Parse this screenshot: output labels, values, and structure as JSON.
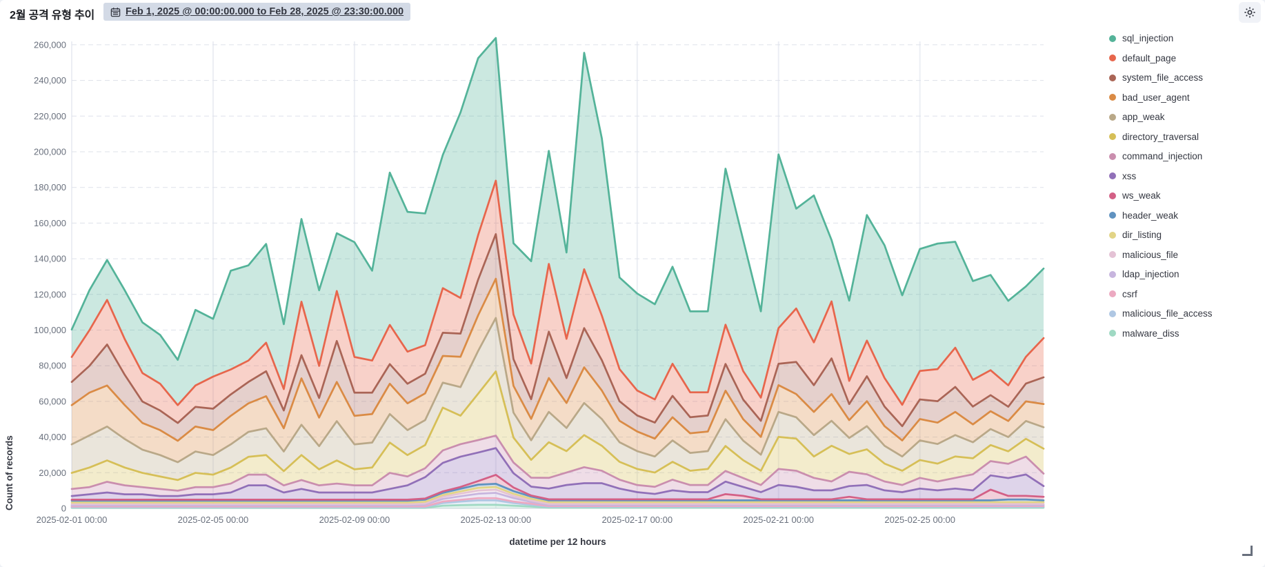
{
  "header": {
    "title": "2월 공격 유형 추이",
    "time_range_label": "Feb 1, 2025 @ 00:00:00.000 to Feb 28, 2025 @ 23:30:00.000",
    "calendar_icon": "calendar-icon",
    "gear_icon": "gear-icon"
  },
  "chart_data": {
    "type": "area",
    "stacked": true,
    "xlabel": "datetime per 12 hours",
    "ylabel": "Count of records",
    "ylim": [
      0,
      270000
    ],
    "grid": true,
    "legend_position": "right",
    "n_points": 56,
    "x_interval": "12h",
    "x_tick_indices": [
      0,
      8,
      16,
      24,
      32,
      40,
      48
    ],
    "x_tick_labels": [
      "2025-02-01 00:00",
      "2025-02-05 00:00",
      "2025-02-09 00:00",
      "2025-02-13 00:00",
      "2025-02-17 00:00",
      "2025-02-21 00:00",
      "2025-02-25 00:00"
    ],
    "y_tick_values": [
      0,
      20000,
      40000,
      60000,
      80000,
      100000,
      120000,
      140000,
      160000,
      180000,
      200000,
      220000,
      240000,
      260000
    ],
    "y_tick_labels": [
      "0",
      "20,000",
      "40,000",
      "60,000",
      "80,000",
      "100,000",
      "120,000",
      "140,000",
      "160,000",
      "180,000",
      "200,000",
      "220,000",
      "240,000",
      "260,000"
    ],
    "series": [
      {
        "name": "sql_injection",
        "color": "#54B399",
        "values": [
          15400,
          22400,
          22400,
          27400,
          28400,
          27400,
          25400,
          42400,
          32400,
          55400,
          53400,
          55400,
          36400,
          46400,
          42400,
          32400,
          64400,
          50400,
          85400,
          78400,
          73900,
          74700,
          104000,
          99200,
          80000,
          40000,
          57400,
          63400,
          48400,
          121400,
          99400,
          51400,
          54400,
          53400,
          54400,
          45400,
          45400,
          87500,
          73500,
          48400,
          97400,
          56000,
          82400,
          34400,
          45000,
          70400,
          74400,
          61400,
          68400,
          70400,
          59400,
          55400,
          53400,
          47400,
          39500,
          39000
        ]
      },
      {
        "name": "default_page",
        "color": "#E7664C",
        "values": [
          14000,
          20000,
          25000,
          20000,
          16000,
          15000,
          10000,
          12000,
          18000,
          14000,
          12000,
          16000,
          12000,
          30000,
          18000,
          28000,
          20000,
          18000,
          22000,
          18000,
          16000,
          25000,
          20000,
          25000,
          30000,
          25000,
          20000,
          38000,
          22000,
          33000,
          25000,
          18000,
          14000,
          13000,
          18000,
          14000,
          13000,
          22000,
          16000,
          13000,
          20000,
          30000,
          24000,
          32000,
          13000,
          20000,
          16000,
          12000,
          16000,
          18000,
          22000,
          15000,
          14000,
          12000,
          15000,
          22000
        ]
      },
      {
        "name": "system_file_access",
        "color": "#AA6556",
        "values": [
          13000,
          15000,
          23000,
          17000,
          12000,
          11000,
          10000,
          11000,
          12000,
          12000,
          12000,
          14000,
          10000,
          13000,
          11000,
          23000,
          13000,
          12000,
          11000,
          11000,
          11000,
          13000,
          13000,
          20000,
          25000,
          15000,
          11000,
          26000,
          14000,
          22000,
          17000,
          11000,
          9000,
          9000,
          12000,
          9000,
          9000,
          15000,
          11000,
          9000,
          12000,
          18000,
          15000,
          20000,
          9000,
          14000,
          11000,
          8000,
          11000,
          12000,
          14000,
          10000,
          9000,
          8000,
          10000,
          15000
        ]
      },
      {
        "name": "bad_user_agent",
        "color": "#DA8B45",
        "values": [
          22000,
          24000,
          23000,
          19000,
          15000,
          14000,
          12000,
          14000,
          14000,
          16000,
          16000,
          18000,
          13000,
          26000,
          16000,
          22000,
          16000,
          16000,
          17000,
          15000,
          15000,
          15000,
          17000,
          20000,
          22000,
          15000,
          12000,
          19000,
          14000,
          20000,
          16000,
          12000,
          11000,
          10000,
          13000,
          11000,
          11000,
          16000,
          12000,
          10000,
          15000,
          13000,
          13000,
          15000,
          10000,
          14000,
          11000,
          9000,
          12000,
          12000,
          13000,
          10000,
          10000,
          9000,
          11000,
          13000
        ]
      },
      {
        "name": "app_weak",
        "color": "#B9A888",
        "values": [
          16000,
          18000,
          19000,
          16000,
          13000,
          12000,
          10000,
          12000,
          11000,
          13000,
          14000,
          15000,
          11000,
          17000,
          13000,
          22000,
          14000,
          14000,
          16000,
          14000,
          14000,
          14000,
          16000,
          24000,
          30000,
          14000,
          11000,
          17000,
          13000,
          18000,
          15000,
          11000,
          10000,
          9000,
          12000,
          10000,
          10000,
          15000,
          11000,
          9000,
          14000,
          12000,
          12000,
          14000,
          9000,
          13000,
          10000,
          8000,
          11000,
          11000,
          12000,
          9000,
          9000,
          8000,
          10000,
          12000
        ]
      },
      {
        "name": "directory_traversal",
        "color": "#D6BF57",
        "values": [
          9000,
          11000,
          12000,
          10000,
          8000,
          7000,
          6000,
          8000,
          7000,
          9000,
          10000,
          11000,
          8000,
          14000,
          9000,
          13000,
          9000,
          10000,
          17000,
          12000,
          13000,
          24000,
          16000,
          26000,
          36000,
          14000,
          10000,
          20000,
          12000,
          18000,
          14000,
          10000,
          9000,
          8000,
          10000,
          8000,
          9000,
          14000,
          10000,
          8000,
          18000,
          18000,
          12000,
          20000,
          10000,
          14000,
          10000,
          8000,
          10000,
          10000,
          12000,
          9000,
          9000,
          7000,
          10000,
          14000
        ]
      },
      {
        "name": "command_injection",
        "color": "#CA8EAE",
        "values": [
          4000,
          4000,
          6000,
          5000,
          4000,
          4000,
          3000,
          4000,
          4000,
          5000,
          6000,
          6000,
          4000,
          5000,
          4000,
          5000,
          4000,
          4000,
          9000,
          5000,
          5000,
          7000,
          7000,
          7000,
          7000,
          6000,
          5000,
          6000,
          7000,
          9000,
          7000,
          5000,
          4000,
          4000,
          6000,
          4000,
          4000,
          6000,
          5000,
          4000,
          9000,
          9000,
          7000,
          5000,
          8000,
          6000,
          5000,
          4000,
          6000,
          5000,
          6000,
          9000,
          8000,
          8000,
          10000,
          7000
        ]
      },
      {
        "name": "xss",
        "color": "#9170B8",
        "values": [
          2000,
          3000,
          4000,
          3000,
          3000,
          2000,
          2000,
          3000,
          3000,
          4000,
          8000,
          8000,
          4000,
          6000,
          4000,
          4000,
          4000,
          4000,
          6000,
          8000,
          12000,
          16000,
          17000,
          16000,
          15000,
          8000,
          5000,
          6000,
          8000,
          9000,
          9000,
          6000,
          4000,
          3000,
          5000,
          4000,
          4000,
          7000,
          5000,
          4000,
          8000,
          7000,
          5000,
          5000,
          6000,
          8000,
          5000,
          4000,
          6000,
          5000,
          6000,
          5000,
          8000,
          10000,
          12000,
          6000
        ]
      },
      {
        "name": "ws_weak",
        "color": "#D36086",
        "values": [
          600,
          600,
          600,
          600,
          600,
          600,
          600,
          600,
          600,
          600,
          600,
          600,
          600,
          600,
          600,
          600,
          600,
          600,
          600,
          600,
          600,
          800,
          1000,
          2000,
          5000,
          2000,
          600,
          600,
          600,
          600,
          600,
          600,
          600,
          600,
          600,
          600,
          600,
          3500,
          2500,
          600,
          600,
          600,
          600,
          600,
          2000,
          600,
          600,
          600,
          600,
          600,
          600,
          600,
          6000,
          2000,
          2000,
          2000
        ]
      },
      {
        "name": "header_weak",
        "color": "#6092C0",
        "values": [
          1000,
          1000,
          1000,
          1000,
          1000,
          1000,
          1000,
          1000,
          1000,
          1000,
          1000,
          1000,
          1000,
          1000,
          1000,
          1000,
          1000,
          1000,
          1000,
          1000,
          1200,
          1200,
          1500,
          1800,
          1800,
          1500,
          1200,
          1000,
          1000,
          1000,
          1000,
          1000,
          1000,
          1000,
          1000,
          1000,
          1000,
          1000,
          1000,
          1000,
          1000,
          1000,
          1000,
          1000,
          1000,
          1000,
          1000,
          1000,
          1000,
          1000,
          1000,
          1000,
          1000,
          1500,
          1500,
          1000
        ]
      },
      {
        "name": "dir_listing",
        "color": "#E2D486",
        "values": [
          1000,
          1000,
          1000,
          1000,
          1000,
          1000,
          1000,
          1000,
          1000,
          1000,
          1000,
          1000,
          1000,
          1000,
          1000,
          1000,
          1000,
          1000,
          1000,
          1000,
          1000,
          1000,
          1200,
          1500,
          1500,
          1200,
          1000,
          1000,
          1000,
          1000,
          1000,
          1000,
          1000,
          1000,
          1000,
          1000,
          1000,
          1000,
          1000,
          1000,
          1000,
          1000,
          1000,
          1000,
          1000,
          1000,
          1000,
          1000,
          1000,
          1000,
          1000,
          1000,
          1000,
          1000,
          1000,
          1000
        ]
      },
      {
        "name": "malicious_file",
        "color": "#E4C2D5",
        "values": [
          600,
          600,
          600,
          600,
          600,
          600,
          600,
          600,
          600,
          600,
          600,
          600,
          600,
          600,
          600,
          600,
          600,
          600,
          600,
          600,
          600,
          1200,
          1500,
          1800,
          1800,
          1200,
          800,
          600,
          600,
          600,
          600,
          600,
          600,
          600,
          600,
          600,
          600,
          600,
          600,
          600,
          600,
          600,
          600,
          600,
          600,
          600,
          600,
          600,
          600,
          600,
          600,
          600,
          600,
          600,
          600,
          600
        ]
      },
      {
        "name": "ldap_injection",
        "color": "#C7B5DE",
        "values": [
          600,
          600,
          600,
          600,
          600,
          600,
          600,
          600,
          600,
          600,
          600,
          600,
          600,
          600,
          600,
          600,
          600,
          600,
          600,
          600,
          1000,
          1500,
          2000,
          2500,
          3000,
          2000,
          1000,
          600,
          600,
          600,
          600,
          600,
          600,
          600,
          600,
          600,
          600,
          600,
          600,
          600,
          600,
          600,
          600,
          600,
          600,
          600,
          600,
          600,
          600,
          600,
          600,
          600,
          600,
          600,
          600,
          600
        ]
      },
      {
        "name": "csrf",
        "color": "#ECA9C1",
        "values": [
          400,
          400,
          400,
          400,
          400,
          400,
          400,
          400,
          400,
          400,
          400,
          400,
          400,
          400,
          400,
          400,
          400,
          400,
          400,
          400,
          400,
          800,
          1000,
          1200,
          1200,
          800,
          600,
          400,
          400,
          400,
          400,
          400,
          400,
          400,
          400,
          400,
          400,
          400,
          400,
          400,
          400,
          400,
          400,
          400,
          400,
          400,
          400,
          400,
          400,
          400,
          400,
          400,
          400,
          400,
          400,
          400
        ]
      },
      {
        "name": "malicious_file_access",
        "color": "#AFC7E3",
        "values": [
          400,
          400,
          400,
          400,
          400,
          400,
          400,
          400,
          400,
          400,
          400,
          400,
          400,
          400,
          400,
          400,
          400,
          400,
          400,
          400,
          400,
          1500,
          2000,
          2500,
          2500,
          1500,
          1000,
          500,
          500,
          500,
          500,
          500,
          500,
          500,
          500,
          500,
          500,
          500,
          500,
          500,
          500,
          500,
          500,
          500,
          500,
          500,
          500,
          500,
          500,
          500,
          500,
          500,
          500,
          500,
          500,
          500
        ]
      },
      {
        "name": "malware_diss",
        "color": "#9FD9C3",
        "values": [
          300,
          300,
          300,
          300,
          300,
          300,
          300,
          300,
          300,
          300,
          300,
          300,
          300,
          300,
          300,
          300,
          300,
          300,
          300,
          300,
          300,
          1500,
          1800,
          2000,
          2000,
          1500,
          1000,
          400,
          400,
          400,
          400,
          400,
          400,
          400,
          400,
          400,
          400,
          400,
          400,
          400,
          400,
          400,
          400,
          400,
          400,
          400,
          400,
          400,
          400,
          400,
          400,
          400,
          400,
          400,
          400,
          400
        ]
      }
    ]
  }
}
